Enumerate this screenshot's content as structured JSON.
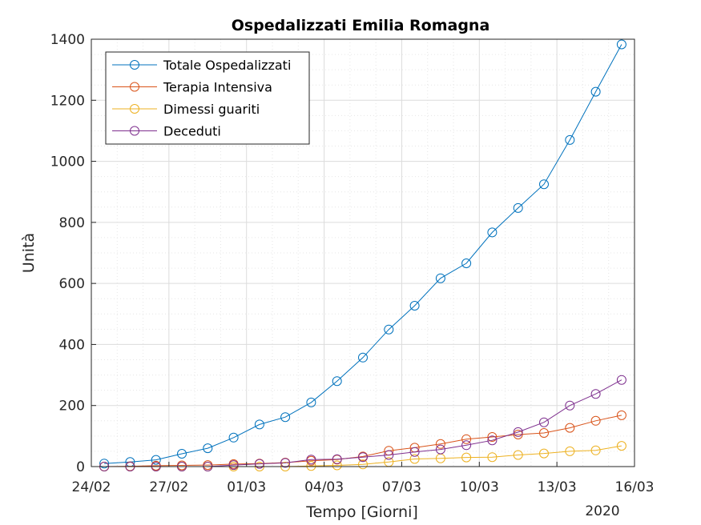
{
  "chart_data": {
    "type": "line",
    "title": "Ospedalizzati Emilia Romagna",
    "xlabel": "Tempo [Giorni]",
    "ylabel": "Unità",
    "year_label": "2020",
    "xlim": [
      "2020-02-24",
      "2020-03-16"
    ],
    "ylim": [
      0,
      1400
    ],
    "x_tick_labels": [
      "24/02",
      "27/02",
      "01/03",
      "04/03",
      "07/03",
      "10/03",
      "13/03",
      "16/03"
    ],
    "y_tick_labels": [
      "0",
      "200",
      "400",
      "600",
      "800",
      "1000",
      "1200",
      "1400"
    ],
    "grid": true,
    "legend_position": "top-left",
    "x": [
      "2020-02-24",
      "2020-02-25",
      "2020-02-26",
      "2020-02-27",
      "2020-02-28",
      "2020-02-29",
      "2020-03-01",
      "2020-03-02",
      "2020-03-03",
      "2020-03-04",
      "2020-03-05",
      "2020-03-06",
      "2020-03-07",
      "2020-03-08",
      "2020-03-09",
      "2020-03-10",
      "2020-03-11",
      "2020-03-12",
      "2020-03-13",
      "2020-03-14",
      "2020-03-15"
    ],
    "series": [
      {
        "name": "Totale Ospedalizzati",
        "color": "#0072BD",
        "values": [
          10,
          15,
          22,
          42,
          60,
          95,
          138,
          162,
          210,
          280,
          357,
          449,
          527,
          617,
          666,
          767,
          847,
          925,
          1070,
          1228,
          1383
        ]
      },
      {
        "name": "Terapia Intensiva",
        "color": "#D95319",
        "values": [
          0,
          1,
          3,
          4,
          5,
          8,
          10,
          13,
          19,
          23,
          33,
          52,
          62,
          74,
          90,
          97,
          105,
          110,
          127,
          150,
          168
        ]
      },
      {
        "name": "Dimessi guariti",
        "color": "#EDB120",
        "values": [
          0,
          0,
          0,
          0,
          0,
          0,
          0,
          0,
          2,
          4,
          7,
          15,
          25,
          27,
          30,
          31,
          38,
          43,
          50,
          53,
          68
        ]
      },
      {
        "name": "Deceduti",
        "color": "#7E2F8E",
        "values": [
          0,
          0,
          0,
          0,
          0,
          5,
          9,
          12,
          23,
          24,
          31,
          38,
          48,
          56,
          70,
          86,
          113,
          145,
          200,
          238,
          284
        ]
      }
    ]
  }
}
